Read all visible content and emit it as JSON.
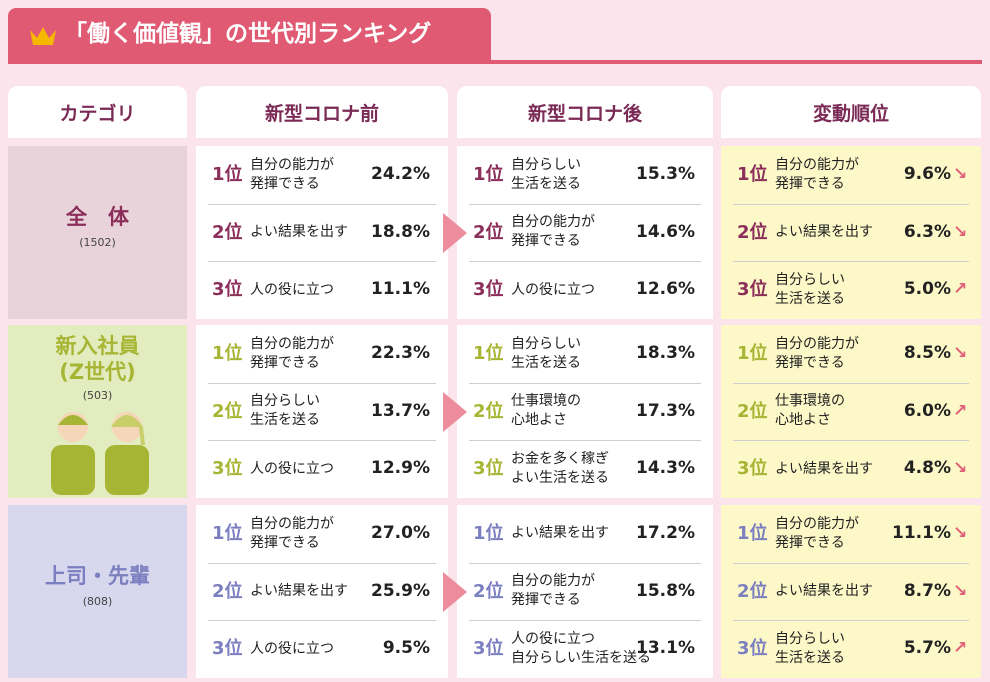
{
  "header": {
    "title": "「働く価値観」の世代別ランキング"
  },
  "table": {
    "columns": [
      "カテゴリ",
      "新型コロナ前",
      "新型コロナ後",
      "変動順位"
    ],
    "groups": [
      {
        "name": "全　体",
        "count": "(1502)",
        "columns": [
          [
            {
              "rank": "1位",
              "item": "自分の能力が\n発揮できる",
              "value": "24.2%"
            },
            {
              "rank": "2位",
              "item": "よい結果を出す",
              "value": "18.8%"
            },
            {
              "rank": "3位",
              "item": "人の役に立つ",
              "value": "11.1%"
            }
          ],
          [
            {
              "rank": "1位",
              "item": "自分らしい\n生活を送る",
              "value": "15.3%"
            },
            {
              "rank": "2位",
              "item": "自分の能力が\n発揮できる",
              "value": "14.6%"
            },
            {
              "rank": "3位",
              "item": "人の役に立つ",
              "value": "12.6%"
            }
          ],
          [
            {
              "rank": "1位",
              "item": "自分の能力が\n発揮できる",
              "value": "9.6%",
              "trend": "↘"
            },
            {
              "rank": "2位",
              "item": "よい結果を出す",
              "value": "6.3%",
              "trend": "↘"
            },
            {
              "rank": "3位",
              "item": "自分らしい\n生活を送る",
              "value": "5.0%",
              "trend": "↗"
            }
          ]
        ]
      },
      {
        "name": "新入社員\n(Z世代)",
        "count": "(503)",
        "columns": [
          [
            {
              "rank": "1位",
              "item": "自分の能力が\n発揮できる",
              "value": "22.3%"
            },
            {
              "rank": "2位",
              "item": "自分らしい\n生活を送る",
              "value": "13.7%"
            },
            {
              "rank": "3位",
              "item": "人の役に立つ",
              "value": "12.9%"
            }
          ],
          [
            {
              "rank": "1位",
              "item": "自分らしい\n生活を送る",
              "value": "18.3%"
            },
            {
              "rank": "2位",
              "item": "仕事環境の\n心地よさ",
              "value": "17.3%"
            },
            {
              "rank": "3位",
              "item": "お金を多く稼ぎ\nよい生活を送る",
              "value": "14.3%"
            }
          ],
          [
            {
              "rank": "1位",
              "item": "自分の能力が\n発揮できる",
              "value": "8.5%",
              "trend": "↘"
            },
            {
              "rank": "2位",
              "item": "仕事環境の\n心地よさ",
              "value": "6.0%",
              "trend": "↗"
            },
            {
              "rank": "3位",
              "item": "よい結果を出す",
              "value": "4.8%",
              "trend": "↘"
            }
          ]
        ]
      },
      {
        "name": "上司・先輩",
        "count": "(808)",
        "columns": [
          [
            {
              "rank": "1位",
              "item": "自分の能力が\n発揮できる",
              "value": "27.0%"
            },
            {
              "rank": "2位",
              "item": "よい結果を出す",
              "value": "25.9%"
            },
            {
              "rank": "3位",
              "item": "人の役に立つ",
              "value": "9.5%"
            }
          ],
          [
            {
              "rank": "1位",
              "item": "よい結果を出す",
              "value": "17.2%"
            },
            {
              "rank": "2位",
              "item": "自分の能力が\n発揮できる",
              "value": "15.8%"
            },
            {
              "rank": "3位",
              "item": "人の役に立つ\n自分らしい生活を送る",
              "value": "13.1%"
            }
          ],
          [
            {
              "rank": "1位",
              "item": "自分の能力が\n発揮できる",
              "value": "11.1%",
              "trend": "↘"
            },
            {
              "rank": "2位",
              "item": "よい結果を出す",
              "value": "8.7%",
              "trend": "↘"
            },
            {
              "rank": "3位",
              "item": "自分らしい\n生活を送る",
              "value": "5.7%",
              "trend": "↗"
            }
          ]
        ]
      }
    ]
  }
}
